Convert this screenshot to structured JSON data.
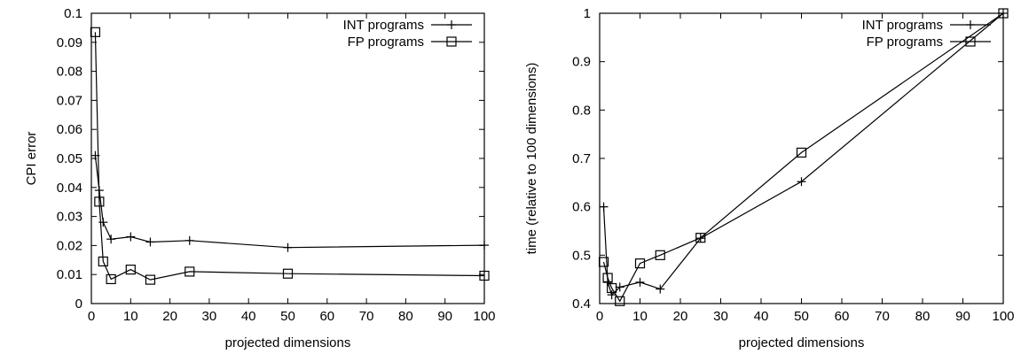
{
  "chart_data": [
    {
      "type": "line",
      "xlabel": "projected dimensions",
      "ylabel": "CPI error",
      "xlim": [
        0,
        100
      ],
      "ylim": [
        0,
        0.1
      ],
      "xticks": [
        0,
        10,
        20,
        30,
        40,
        50,
        60,
        70,
        80,
        90,
        100
      ],
      "yticks": [
        0,
        0.01,
        0.02,
        0.03,
        0.04,
        0.05,
        0.06,
        0.07,
        0.08,
        0.09,
        0.1
      ],
      "legend_position": "top-right",
      "series": [
        {
          "name": "INT programs",
          "marker": "plus",
          "x": [
            1,
            2,
            3,
            5,
            10,
            15,
            25,
            50,
            100
          ],
          "y": [
            0.051,
            0.039,
            0.028,
            0.0222,
            0.023,
            0.0212,
            0.0217,
            0.0193,
            0.0201
          ]
        },
        {
          "name": "FP programs",
          "marker": "square",
          "x": [
            1,
            2,
            3,
            5,
            10,
            15,
            25,
            50,
            100
          ],
          "y": [
            0.0935,
            0.0351,
            0.0145,
            0.0084,
            0.0117,
            0.0082,
            0.011,
            0.0103,
            0.0096
          ]
        }
      ]
    },
    {
      "type": "line",
      "xlabel": "projected dimensions",
      "ylabel": "time (relative to 100 dimensions)",
      "xlim": [
        0,
        100
      ],
      "ylim": [
        0.4,
        1
      ],
      "xticks": [
        0,
        10,
        20,
        30,
        40,
        50,
        60,
        70,
        80,
        90,
        100
      ],
      "yticks": [
        0.4,
        0.5,
        0.6,
        0.7,
        0.8,
        0.9,
        1
      ],
      "legend_position": "top-right",
      "series": [
        {
          "name": "INT programs",
          "marker": "plus",
          "x": [
            1,
            2,
            3,
            5,
            10,
            15,
            25,
            50,
            100
          ],
          "y": [
            0.6,
            0.445,
            0.418,
            0.434,
            0.444,
            0.43,
            0.535,
            0.652,
            1.0
          ]
        },
        {
          "name": "FP programs",
          "marker": "square",
          "x": [
            1,
            2,
            3,
            5,
            10,
            15,
            25,
            50,
            100
          ],
          "y": [
            0.486,
            0.453,
            0.432,
            0.405,
            0.483,
            0.5,
            0.536,
            0.712,
            1.0
          ]
        }
      ]
    }
  ]
}
